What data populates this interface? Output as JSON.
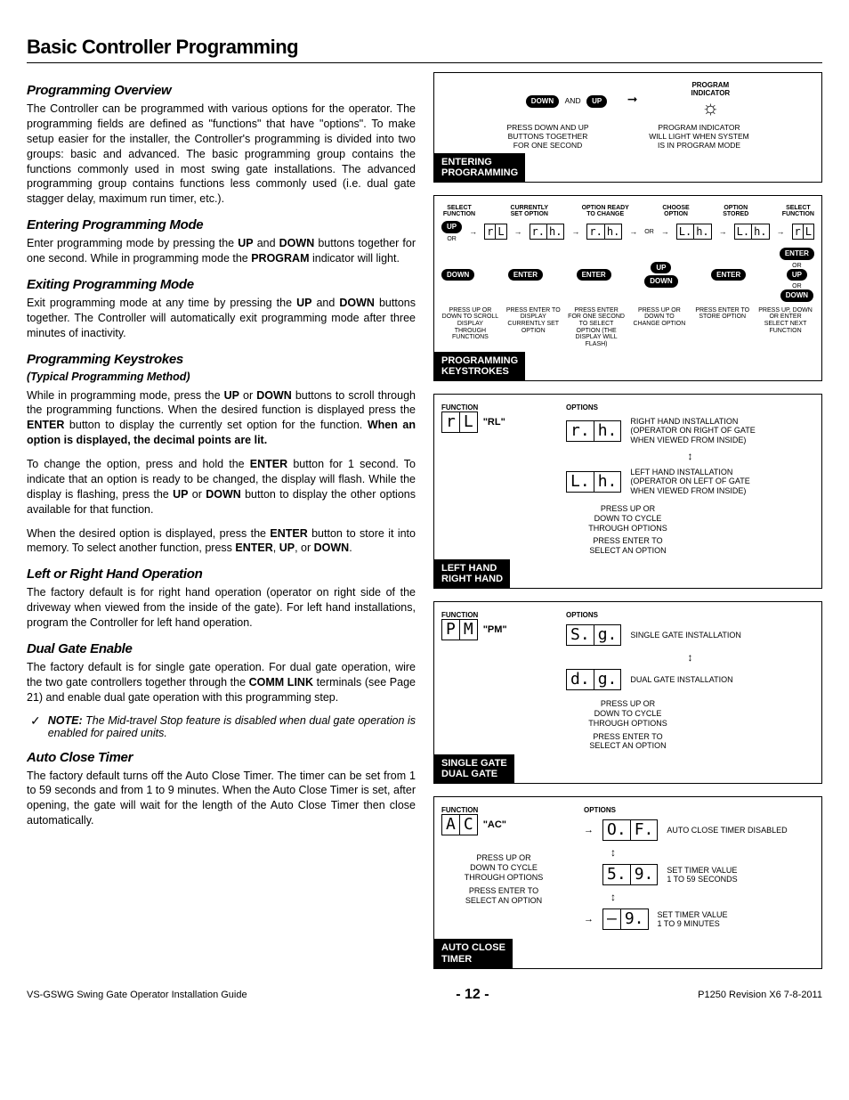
{
  "page": {
    "title": "Basic Controller Programming",
    "footer_left": "VS-GSWG    Swing Gate Operator Installation Guide",
    "footer_center": "- 12 -",
    "footer_right": "P1250 Revision X6 7-8-2011"
  },
  "sections": {
    "overview": {
      "heading": "Programming Overview",
      "body": "The Controller can be programmed with various options for the operator. The programming fields are defined as \"functions\" that have \"options\". To make setup easier for the installer, the Controller's programming is divided into two groups: basic and advanced. The basic programming group contains the functions commonly used in most swing gate installations. The advanced programming group contains functions less commonly used (i.e. dual gate stagger delay, maximum run timer, etc.)."
    },
    "entering": {
      "heading": "Entering Programming Mode",
      "body_html": "Enter programming mode by pressing the <b>UP</b> and <b>DOWN</b> buttons together for one second. While in programming mode the <b>PROGRAM</b> indicator will light."
    },
    "exiting": {
      "heading": "Exiting Programming Mode",
      "body_html": "Exit programming mode at any time by pressing the <b>UP</b> and <b>DOWN</b> buttons together. The Controller will automatically exit programming mode after three minutes of inactivity."
    },
    "keystrokes": {
      "heading": "Programming Keystrokes",
      "sub": "(Typical Programming Method)",
      "p1_html": "While in programming mode, press the <b>UP</b> or <b>DOWN</b> buttons to scroll through the programming functions. When the desired function is displayed press the <b>ENTER</b> button to display the currently set option for the function. <b>When an option is displayed, the decimal points are lit.</b>",
      "p2_html": "To change the option, press and hold the <b>ENTER</b> button for 1 second. To indicate that an option is ready to be changed, the display will flash. While the display is flashing, press the <b>UP</b> or <b>DOWN</b> button to display the other options available for that function.",
      "p3_html": "When the desired option is displayed, press the <b>ENTER</b> button to store it into memory. To select another function, press <b>ENTER</b>, <b>UP</b>, or <b>DOWN</b>."
    },
    "lr": {
      "heading": "Left or Right Hand Operation",
      "body": "The factory default is for right hand operation (operator on right side of the driveway when viewed from the inside of the gate). For left hand installations, program the Controller for left hand operation."
    },
    "dual": {
      "heading": "Dual Gate Enable",
      "body_html": "The factory default is for single gate operation. For dual gate operation, wire the two gate controllers together through the <b>COMM LINK</b> terminals (see Page 21) and enable dual gate operation with this programming step.",
      "note_html": "<b>NOTE:</b> The Mid-travel Stop feature is disabled when dual gate operation is enabled for paired units."
    },
    "auto": {
      "heading": "Auto Close Timer",
      "body": "The factory default turns off the Auto Close Timer. The timer can be set from 1 to 59 seconds and from 1 to 9 minutes. When the Auto Close Timer is set, after opening, the gate will wait for the length of the Auto Close Timer then close automatically."
    }
  },
  "diagrams": {
    "d1": {
      "label": "ENTERING PROGRAMMING",
      "down": "DOWN",
      "and": "AND",
      "up": "UP",
      "prog_ind": "PROGRAM\nINDICATOR",
      "left_text": "PRESS DOWN AND UP\nBUTTONS TOGETHER\nFOR ONE SECOND",
      "right_text": "PROGRAM INDICATOR\nWILL LIGHT WHEN SYSTEM\nIS IN PROGRAM MODE"
    },
    "d2": {
      "label": "PROGRAMMING KEYSTROKES",
      "labels": [
        "SELECT FUNCTION",
        "CURRENTLY SET OPTION",
        "OPTION READY TO CHANGE",
        "CHOOSE OPTION",
        "OPTION STORED",
        "SELECT FUNCTION"
      ],
      "pills": {
        "up": "UP",
        "down": "DOWN",
        "enter": "ENTER",
        "or": "OR"
      },
      "descs": [
        "PRESS UP OR DOWN TO SCROLL DISPLAY THROUGH FUNCTIONS",
        "PRESS ENTER TO DISPLAY CURRENTLY SET OPTION",
        "PRESS ENTER FOR ONE SECOND TO SELECT OPTION (THE DISPLAY WILL FLASH)",
        "PRESS UP OR DOWN TO CHANGE OPTION",
        "PRESS ENTER TO STORE OPTION",
        "PRESS UP, DOWN OR ENTER SELECT NEXT FUNCTION"
      ]
    },
    "d3": {
      "label": "LEFT HAND RIGHT HAND",
      "func": "FUNCTION",
      "opts": "OPTIONS",
      "code": "\"RL\"",
      "seg_func": [
        "r",
        "L"
      ],
      "opt1_seg": [
        "r.",
        "h."
      ],
      "opt1_text": "RIGHT HAND INSTALLATION\n(OPERATOR ON RIGHT OF GATE\nWHEN VIEWED FROM INSIDE)",
      "opt2_seg": [
        "L.",
        "h."
      ],
      "opt2_text": "LEFT HAND INSTALLATION\n(OPERATOR ON LEFT OF GATE\nWHEN VIEWED FROM INSIDE)",
      "cycle": "PRESS UP OR\nDOWN TO CYCLE\nTHROUGH OPTIONS",
      "select": "PRESS ENTER TO\nSELECT AN OPTION"
    },
    "d4": {
      "label": "SINGLE GATE DUAL GATE",
      "code": "\"PM\"",
      "seg_func": [
        "P",
        "M"
      ],
      "opt1_seg": [
        "S.",
        "g."
      ],
      "opt1_text": "SINGLE GATE INSTALLATION",
      "opt2_seg": [
        "d.",
        "g."
      ],
      "opt2_text": "DUAL GATE INSTALLATION",
      "cycle": "PRESS UP OR\nDOWN TO CYCLE\nTHROUGH OPTIONS",
      "select": "PRESS ENTER TO\nSELECT AN OPTION"
    },
    "d5": {
      "label": "AUTO CLOSE TIMER",
      "code": "\"AC\"",
      "seg_func": [
        "A",
        "C"
      ],
      "opt1_seg": [
        "O.",
        "F."
      ],
      "opt1_text": "AUTO CLOSE TIMER DISABLED",
      "opt2_seg": [
        "5.",
        "9."
      ],
      "opt2_text": "SET TIMER VALUE\n1 TO 59 SECONDS",
      "opt3_seg": [
        "–",
        "9."
      ],
      "opt3_text": "SET TIMER VALUE\n1 TO 9 MINUTES",
      "cycle": "PRESS UP OR\nDOWN TO CYCLE\nTHROUGH OPTIONS",
      "select": "PRESS ENTER TO\nSELECT AN OPTION"
    }
  },
  "style": {
    "accent": "#000000",
    "heading_font": "Arial Black",
    "body_font": "Arial"
  }
}
